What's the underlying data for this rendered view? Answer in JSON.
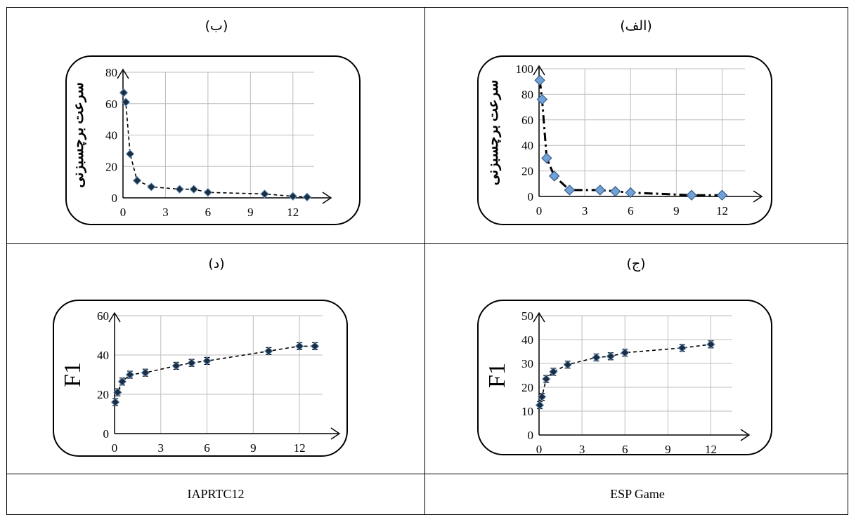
{
  "panels": {
    "a": {
      "label": "(الف)"
    },
    "b": {
      "label": "(ب)"
    },
    "c": {
      "label": "(ج)"
    },
    "d": {
      "label": "(د)"
    }
  },
  "datasets": {
    "left": "IAPRTC12",
    "right": "ESP Game"
  },
  "chart_data": [
    {
      "id": "a",
      "type": "scatter",
      "dataset": "ESP Game",
      "ylabel": "سرعت برچسبزنی",
      "xlabel": "",
      "xlim": [
        0,
        13.5
      ],
      "ylim": [
        0,
        100
      ],
      "xticks": [
        0,
        3,
        6,
        9,
        12
      ],
      "yticks": [
        0,
        20,
        40,
        60,
        80,
        100
      ],
      "grid": true,
      "marker": "diamond",
      "marker_color": "#6fa0d6",
      "line_style": "dash-dot",
      "x": [
        0.05,
        0.2,
        0.5,
        1,
        2,
        4,
        5,
        6,
        10,
        12
      ],
      "y": [
        91,
        76,
        30,
        16,
        5,
        5,
        4,
        3,
        1,
        1
      ]
    },
    {
      "id": "b",
      "type": "scatter",
      "dataset": "IAPRTC12",
      "ylabel": "سرعت برچسبزنی",
      "xlabel": "",
      "xlim": [
        0,
        13.5
      ],
      "ylim": [
        0,
        80
      ],
      "xticks": [
        0,
        3,
        6,
        9,
        12
      ],
      "yticks": [
        0,
        20,
        40,
        60,
        80
      ],
      "grid": true,
      "marker": "diamond",
      "marker_color": "#1f2d3d",
      "line_style": "dashed",
      "x": [
        0.05,
        0.2,
        0.5,
        1,
        2,
        4,
        5,
        6,
        10,
        12,
        13
      ],
      "y": [
        67,
        61,
        28,
        11,
        7,
        5.5,
        5.5,
        3.5,
        2.5,
        1,
        0.5
      ]
    },
    {
      "id": "c",
      "type": "scatter",
      "dataset": "ESP Game",
      "ylabel": "F1",
      "xlabel": "",
      "xlim": [
        0,
        13.5
      ],
      "ylim": [
        0,
        50
      ],
      "xticks": [
        0,
        3,
        6,
        9,
        12
      ],
      "yticks": [
        0,
        10,
        20,
        30,
        40,
        50
      ],
      "grid": true,
      "marker": "diamond",
      "marker_color": "#1f2d3d",
      "line_style": "dashed",
      "error_bars": true,
      "x": [
        0.05,
        0.2,
        0.5,
        1,
        2,
        4,
        5,
        6,
        10,
        12
      ],
      "y": [
        12.5,
        16,
        23.5,
        26.5,
        29.5,
        32.5,
        33,
        34.5,
        36.5,
        38
      ]
    },
    {
      "id": "d",
      "type": "scatter",
      "dataset": "IAPRTC12",
      "ylabel": "F1",
      "xlabel": "",
      "xlim": [
        0,
        13.5
      ],
      "ylim": [
        0,
        60
      ],
      "xticks": [
        0,
        3,
        6,
        9,
        12
      ],
      "yticks": [
        0,
        20,
        40,
        60
      ],
      "grid": true,
      "marker": "diamond",
      "marker_color": "#1f2d3d",
      "line_style": "dashed",
      "error_bars": true,
      "x": [
        0.05,
        0.2,
        0.5,
        1,
        2,
        4,
        5,
        6,
        10,
        12,
        13
      ],
      "y": [
        16,
        21,
        26.5,
        30,
        31,
        34.5,
        36,
        37,
        42,
        44.5,
        44.5
      ]
    }
  ]
}
